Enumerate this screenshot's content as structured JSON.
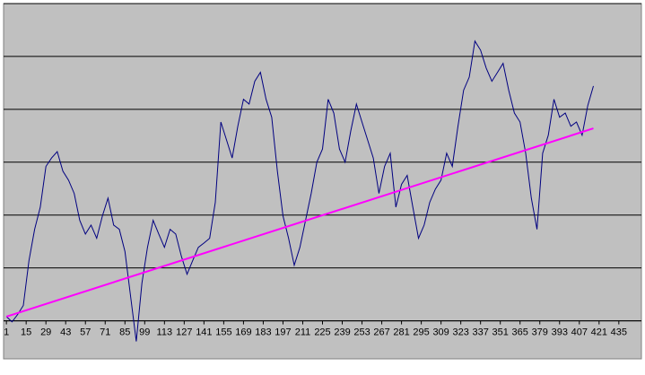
{
  "chart_data": {
    "type": "line",
    "x": [
      1,
      5,
      9,
      13,
      17,
      21,
      25,
      29,
      33,
      37,
      41,
      45,
      49,
      53,
      57,
      61,
      65,
      69,
      73,
      77,
      81,
      85,
      89,
      93,
      97,
      101,
      105,
      109,
      113,
      117,
      121,
      125,
      129,
      133,
      137,
      141,
      145,
      149,
      153,
      157,
      161,
      165,
      169,
      173,
      177,
      181,
      185,
      189,
      193,
      197,
      201,
      205,
      209,
      213,
      217,
      221,
      225,
      229,
      233,
      237,
      241,
      245,
      249,
      253,
      257,
      261,
      265,
      269,
      273,
      277,
      281,
      285,
      289,
      293,
      297,
      301,
      305,
      309,
      313,
      317,
      321,
      325,
      329,
      333,
      337,
      341,
      345,
      349,
      353,
      357,
      361,
      365,
      369,
      373,
      377,
      381,
      385,
      389,
      393,
      397,
      401,
      405,
      409,
      413,
      417
    ],
    "series": [
      {
        "color": "#000080",
        "values": [
          0.08,
          -0.02,
          0.12,
          0.29,
          1.14,
          1.73,
          2.15,
          2.92,
          3.08,
          3.2,
          2.83,
          2.66,
          2.41,
          1.9,
          1.64,
          1.81,
          1.56,
          1.98,
          2.32,
          1.81,
          1.73,
          1.31,
          0.46,
          -0.39,
          0.71,
          1.39,
          1.9,
          1.64,
          1.39,
          1.73,
          1.64,
          1.22,
          0.88,
          1.14,
          1.39,
          1.47,
          1.56,
          2.24,
          3.76,
          3.42,
          3.08,
          3.68,
          4.19,
          4.1,
          4.53,
          4.7,
          4.19,
          3.85,
          2.83,
          1.98,
          1.56,
          1.05,
          1.39,
          1.9,
          2.41,
          3.0,
          3.25,
          4.19,
          3.93,
          3.25,
          3.0,
          3.59,
          4.1,
          3.76,
          3.42,
          3.08,
          2.41,
          2.92,
          3.17,
          2.15,
          2.58,
          2.75,
          2.15,
          1.56,
          1.81,
          2.24,
          2.49,
          2.66,
          3.17,
          2.92,
          3.68,
          4.36,
          4.61,
          5.29,
          5.12,
          4.78,
          4.53,
          4.7,
          4.87,
          4.36,
          3.93,
          3.76,
          3.17,
          2.32,
          1.73,
          3.17,
          3.51,
          4.19,
          3.85,
          3.93,
          3.68,
          3.76,
          3.51,
          4.07,
          4.44
        ]
      },
      {
        "color": "#ff00ff",
        "x": [
          1,
          417
        ],
        "values": [
          0.08,
          3.64
        ]
      }
    ],
    "xlim": [
      -1,
      451
    ],
    "xticks": [
      1,
      15,
      29,
      43,
      57,
      71,
      85,
      99,
      113,
      127,
      141,
      155,
      169,
      183,
      197,
      211,
      225,
      239,
      253,
      267,
      281,
      295,
      309,
      323,
      337,
      351,
      365,
      379,
      393,
      407,
      421,
      435
    ],
    "ylim": [
      -0.72,
      6.0
    ],
    "yticks": [
      0,
      1,
      2,
      3,
      4,
      5,
      6
    ],
    "grid": true
  }
}
